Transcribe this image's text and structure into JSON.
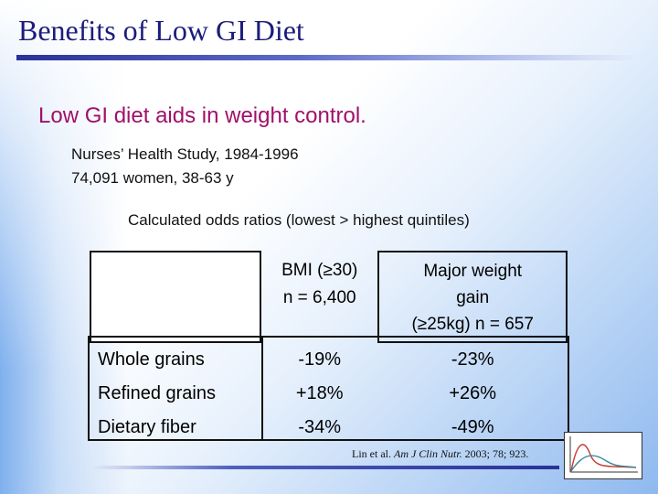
{
  "slide": {
    "title": "Benefits of Low GI Diet",
    "bullet": "Low GI diet aids in weight control.",
    "study_line1": "Nurses’ Health Study, 1984-1996",
    "study_line2": "74,091 women, 38-63 y",
    "odds_caption": "Calculated odds ratios (lowest > highest quintiles)",
    "citation_prefix": "Lin et al. ",
    "citation_journal": "Am J Clin Nutr.",
    "citation_suffix": " 2003; 78; 923.",
    "logo_icon": "gi-curve-icon"
  },
  "table": {
    "headers": [
      {
        "line1": "BMI (≥30)",
        "line2": "n = 6,400",
        "line3": ""
      },
      {
        "line1": "Major weight",
        "line2": "gain",
        "line3": "(≥25kg) n = 657"
      }
    ],
    "rows": [
      {
        "label": "Whole grains",
        "bmi": "-19%",
        "weight_gain": "-23%"
      },
      {
        "label": "Refined grains",
        "bmi": "+18%",
        "weight_gain": "+26%"
      },
      {
        "label": "Dietary fiber",
        "bmi": "-34%",
        "weight_gain": "-49%"
      }
    ]
  },
  "colors": {
    "title": "#1c1c7a",
    "bullet": "#a0106a",
    "rule": "#2b3196"
  }
}
